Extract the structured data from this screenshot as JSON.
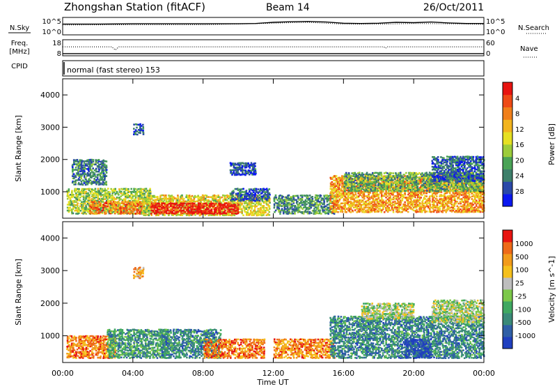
{
  "header": {
    "station": "Zhongshan Station (fitACF)",
    "beam": "Beam 14",
    "date": "26/Oct/2011"
  },
  "chart_data": [
    {
      "id": "noise",
      "type": "line",
      "left_label": "N.Sky",
      "right_label": "N.Search",
      "left_ticks": [
        "10^5",
        "10^0"
      ],
      "right_ticks": [
        "10^5",
        "10^0"
      ],
      "series": [
        {
          "name": "N.Sky",
          "style": "solid",
          "points": [
            [
              0,
              3.2
            ],
            [
              2,
              3.2
            ],
            [
              4,
              3.3
            ],
            [
              6,
              3.3
            ],
            [
              8,
              3.3
            ],
            [
              10,
              3.3
            ],
            [
              11,
              3.4
            ],
            [
              12,
              3.8
            ],
            [
              13,
              4.0
            ],
            [
              14,
              4.1
            ],
            [
              15,
              3.9
            ],
            [
              16,
              3.5
            ],
            [
              17,
              3.4
            ],
            [
              18,
              3.5
            ],
            [
              19,
              3.8
            ],
            [
              20,
              3.7
            ],
            [
              21,
              3.9
            ],
            [
              22,
              3.6
            ],
            [
              23,
              3.4
            ],
            [
              24,
              3.4
            ]
          ]
        },
        {
          "name": "N.Search",
          "style": "dotted",
          "points": [
            [
              0,
              2.9
            ],
            [
              4,
              3.0
            ],
            [
              8,
              3.0
            ],
            [
              12,
              3.5
            ],
            [
              13,
              3.7
            ],
            [
              14,
              3.8
            ],
            [
              16,
              3.2
            ],
            [
              18,
              3.2
            ],
            [
              20,
              3.4
            ],
            [
              22,
              3.3
            ],
            [
              24,
              3.1
            ]
          ]
        }
      ]
    },
    {
      "id": "freq",
      "type": "line",
      "left_label_lines": [
        "Freq.",
        "[MHz]"
      ],
      "left_sub_label": "CPID",
      "right_label": "Nave",
      "left_ticks": [
        "18",
        "8"
      ],
      "right_ticks": [
        "60",
        "0"
      ],
      "series": [
        {
          "name": "Freq",
          "style": "solid",
          "y_range": [
            8,
            18
          ],
          "points": [
            [
              0,
              8.6
            ],
            [
              24,
              8.6
            ]
          ]
        },
        {
          "name": "Nave",
          "style": "dotted",
          "y_range": [
            0,
            60
          ],
          "points": [
            [
              0,
              34
            ],
            [
              2.8,
              34
            ],
            [
              3.0,
              20
            ],
            [
              3.2,
              34
            ],
            [
              18.3,
              34
            ],
            [
              18.4,
              28
            ],
            [
              18.5,
              34
            ],
            [
              24,
              34
            ]
          ]
        }
      ],
      "cpid_text": "normal (fast stereo) 153"
    },
    {
      "id": "power",
      "type": "heatmap",
      "ylabel": "Slant Range [km]",
      "yticks": [
        1000,
        2000,
        3000,
        4000
      ],
      "ylim": [
        180,
        4500
      ],
      "xlim": [
        0,
        24
      ],
      "colorbar": {
        "label": "Power [dB]",
        "ticks": [
          "4",
          "8",
          "12",
          "16",
          "20",
          "24",
          "28"
        ],
        "colors": [
          "#0b18f0",
          "#2a49a8",
          "#3d7f6a",
          "#4aa356",
          "#9ccc3a",
          "#e6e022",
          "#f2b41e",
          "#f07f1a",
          "#ee4a16",
          "#e81410"
        ]
      },
      "regions": [
        {
          "t0": 0.2,
          "t1": 5.0,
          "r0": 300,
          "r1": 1100,
          "v": 0.45
        },
        {
          "t0": 1.5,
          "t1": 4.5,
          "r0": 300,
          "r1": 700,
          "v": 0.75
        },
        {
          "t0": 4.5,
          "t1": 11.8,
          "r0": 250,
          "r1": 900,
          "v": 0.55
        },
        {
          "t0": 5.0,
          "t1": 10.0,
          "r0": 300,
          "r1": 650,
          "v": 0.95
        },
        {
          "t0": 9.5,
          "t1": 11.8,
          "r0": 700,
          "r1": 1100,
          "v": 0.2
        },
        {
          "t0": 12.0,
          "t1": 15.5,
          "r0": 300,
          "r1": 900,
          "v": 0.3
        },
        {
          "t0": 15.2,
          "t1": 24.0,
          "r0": 350,
          "r1": 1500,
          "v": 0.7
        },
        {
          "t0": 16.0,
          "t1": 24.0,
          "r0": 1000,
          "r1": 1600,
          "v": 0.35
        },
        {
          "t0": 21.0,
          "t1": 24.0,
          "r0": 1300,
          "r1": 2100,
          "v": 0.2
        },
        {
          "t0": 9.5,
          "t1": 11.0,
          "r0": 1500,
          "r1": 1900,
          "v": 0.15
        },
        {
          "t0": 0.5,
          "t1": 2.5,
          "r0": 1200,
          "r1": 2000,
          "v": 0.25
        },
        {
          "t0": 4.0,
          "t1": 4.6,
          "r0": 2750,
          "r1": 3100,
          "v": 0.15
        }
      ]
    },
    {
      "id": "velocity",
      "type": "heatmap",
      "ylabel": "Slant Range [km]",
      "yticks": [
        1000,
        2000,
        3000,
        4000
      ],
      "ylim": [
        180,
        4500
      ],
      "xlim": [
        0,
        24
      ],
      "xlabel": "Time UT",
      "xticks": [
        "00:00",
        "04:00",
        "08:00",
        "12:00",
        "16:00",
        "20:00",
        "00:00"
      ],
      "colorbar": {
        "label": "Velocity [m s^-1]",
        "ticks": [
          "1000",
          "500",
          "100",
          "25",
          "-25",
          "-100",
          "-500",
          "-1000"
        ],
        "colors": [
          "#1f3fbf",
          "#2f5fa6",
          "#3a8a78",
          "#3fa861",
          "#7cc84a",
          "#bebebe",
          "#f5c01c",
          "#f29b1a",
          "#ee6a18",
          "#e81410"
        ]
      },
      "regions": [
        {
          "t0": 0.2,
          "t1": 3.0,
          "r0": 300,
          "r1": 1000,
          "v": 0.78
        },
        {
          "t0": 2.5,
          "t1": 6.0,
          "r0": 300,
          "r1": 1200,
          "v": 0.3
        },
        {
          "t0": 5.5,
          "t1": 9.0,
          "r0": 300,
          "r1": 1200,
          "v": 0.25
        },
        {
          "t0": 8.0,
          "t1": 11.5,
          "r0": 300,
          "r1": 900,
          "v": 0.82
        },
        {
          "t0": 12.0,
          "t1": 15.5,
          "r0": 300,
          "r1": 900,
          "v": 0.78
        },
        {
          "t0": 15.2,
          "t1": 24.0,
          "r0": 300,
          "r1": 1600,
          "v": 0.25
        },
        {
          "t0": 19.5,
          "t1": 21.0,
          "r0": 300,
          "r1": 900,
          "v": 0.05
        },
        {
          "t0": 21.0,
          "t1": 24.0,
          "r0": 1400,
          "r1": 2100,
          "v": 0.5
        },
        {
          "t0": 17.0,
          "t1": 20.0,
          "r0": 1500,
          "r1": 2000,
          "v": 0.5
        },
        {
          "t0": 4.0,
          "t1": 4.6,
          "r0": 2750,
          "r1": 3100,
          "v": 0.72
        }
      ]
    }
  ]
}
